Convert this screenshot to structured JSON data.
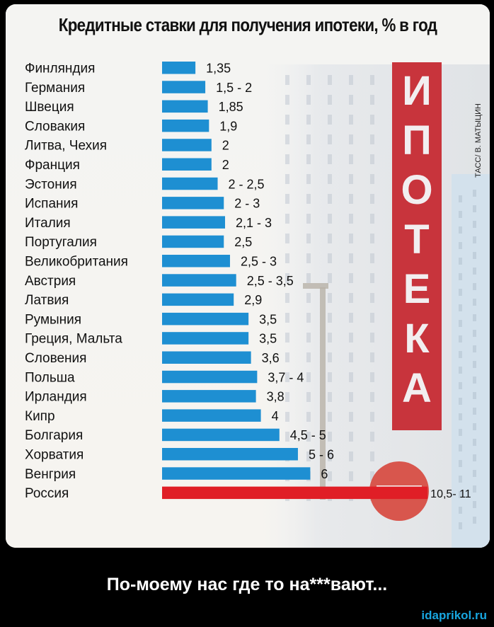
{
  "title": "Кредитные ставки для получения ипотеки, % в год",
  "photo": {
    "sign_letters": [
      "И",
      "П",
      "О",
      "Т",
      "Е",
      "К",
      "А"
    ],
    "credit": "ТАСС/ В. МАТЫЦИН"
  },
  "caption": "По-моему нас где то на***вают...",
  "site": "idaprikol.ru",
  "colors": {
    "bar": "#1e8fd2",
    "highlight": "#e01e26",
    "sign": "#c8343c"
  },
  "chart_data": {
    "type": "bar",
    "orientation": "horizontal",
    "title": "Кредитные ставки для получения ипотеки, % в год",
    "xlim": [
      0,
      11
    ],
    "categories": [
      "Финляндия",
      "Германия",
      "Швеция",
      "Словакия",
      "Литва, Чехия",
      "Франция",
      "Эстония",
      "Испания",
      "Италия",
      "Португалия",
      "Великобритания",
      "Австрия",
      "Латвия",
      "Румыния",
      "Греция, Мальта",
      "Словения",
      "Польша",
      "Ирландия",
      "Кипр",
      "Болгария",
      "Хорватия",
      "Венгрия",
      "Россия"
    ],
    "values": [
      1.35,
      1.75,
      1.85,
      1.9,
      2,
      2,
      2.25,
      2.5,
      2.55,
      2.5,
      2.75,
      3.0,
      2.9,
      3.5,
      3.5,
      3.6,
      3.85,
      3.8,
      4,
      4.75,
      5.5,
      6,
      10.75
    ],
    "labels": [
      "1,35",
      "1,5 - 2",
      "1,85",
      "1,9",
      "2",
      "2",
      "2 - 2,5",
      "2 - 3",
      "2,1 - 3",
      "2,5",
      "2,5 - 3",
      "2,5 - 3,5",
      "2,9",
      "3,5",
      "3,5",
      "3,6",
      "3,7 - 4",
      "3,8",
      "4",
      "4,5 - 5",
      "5 - 6",
      "6",
      "10,5- 11"
    ],
    "highlight_index": 22,
    "grid": false,
    "legend": "none"
  }
}
